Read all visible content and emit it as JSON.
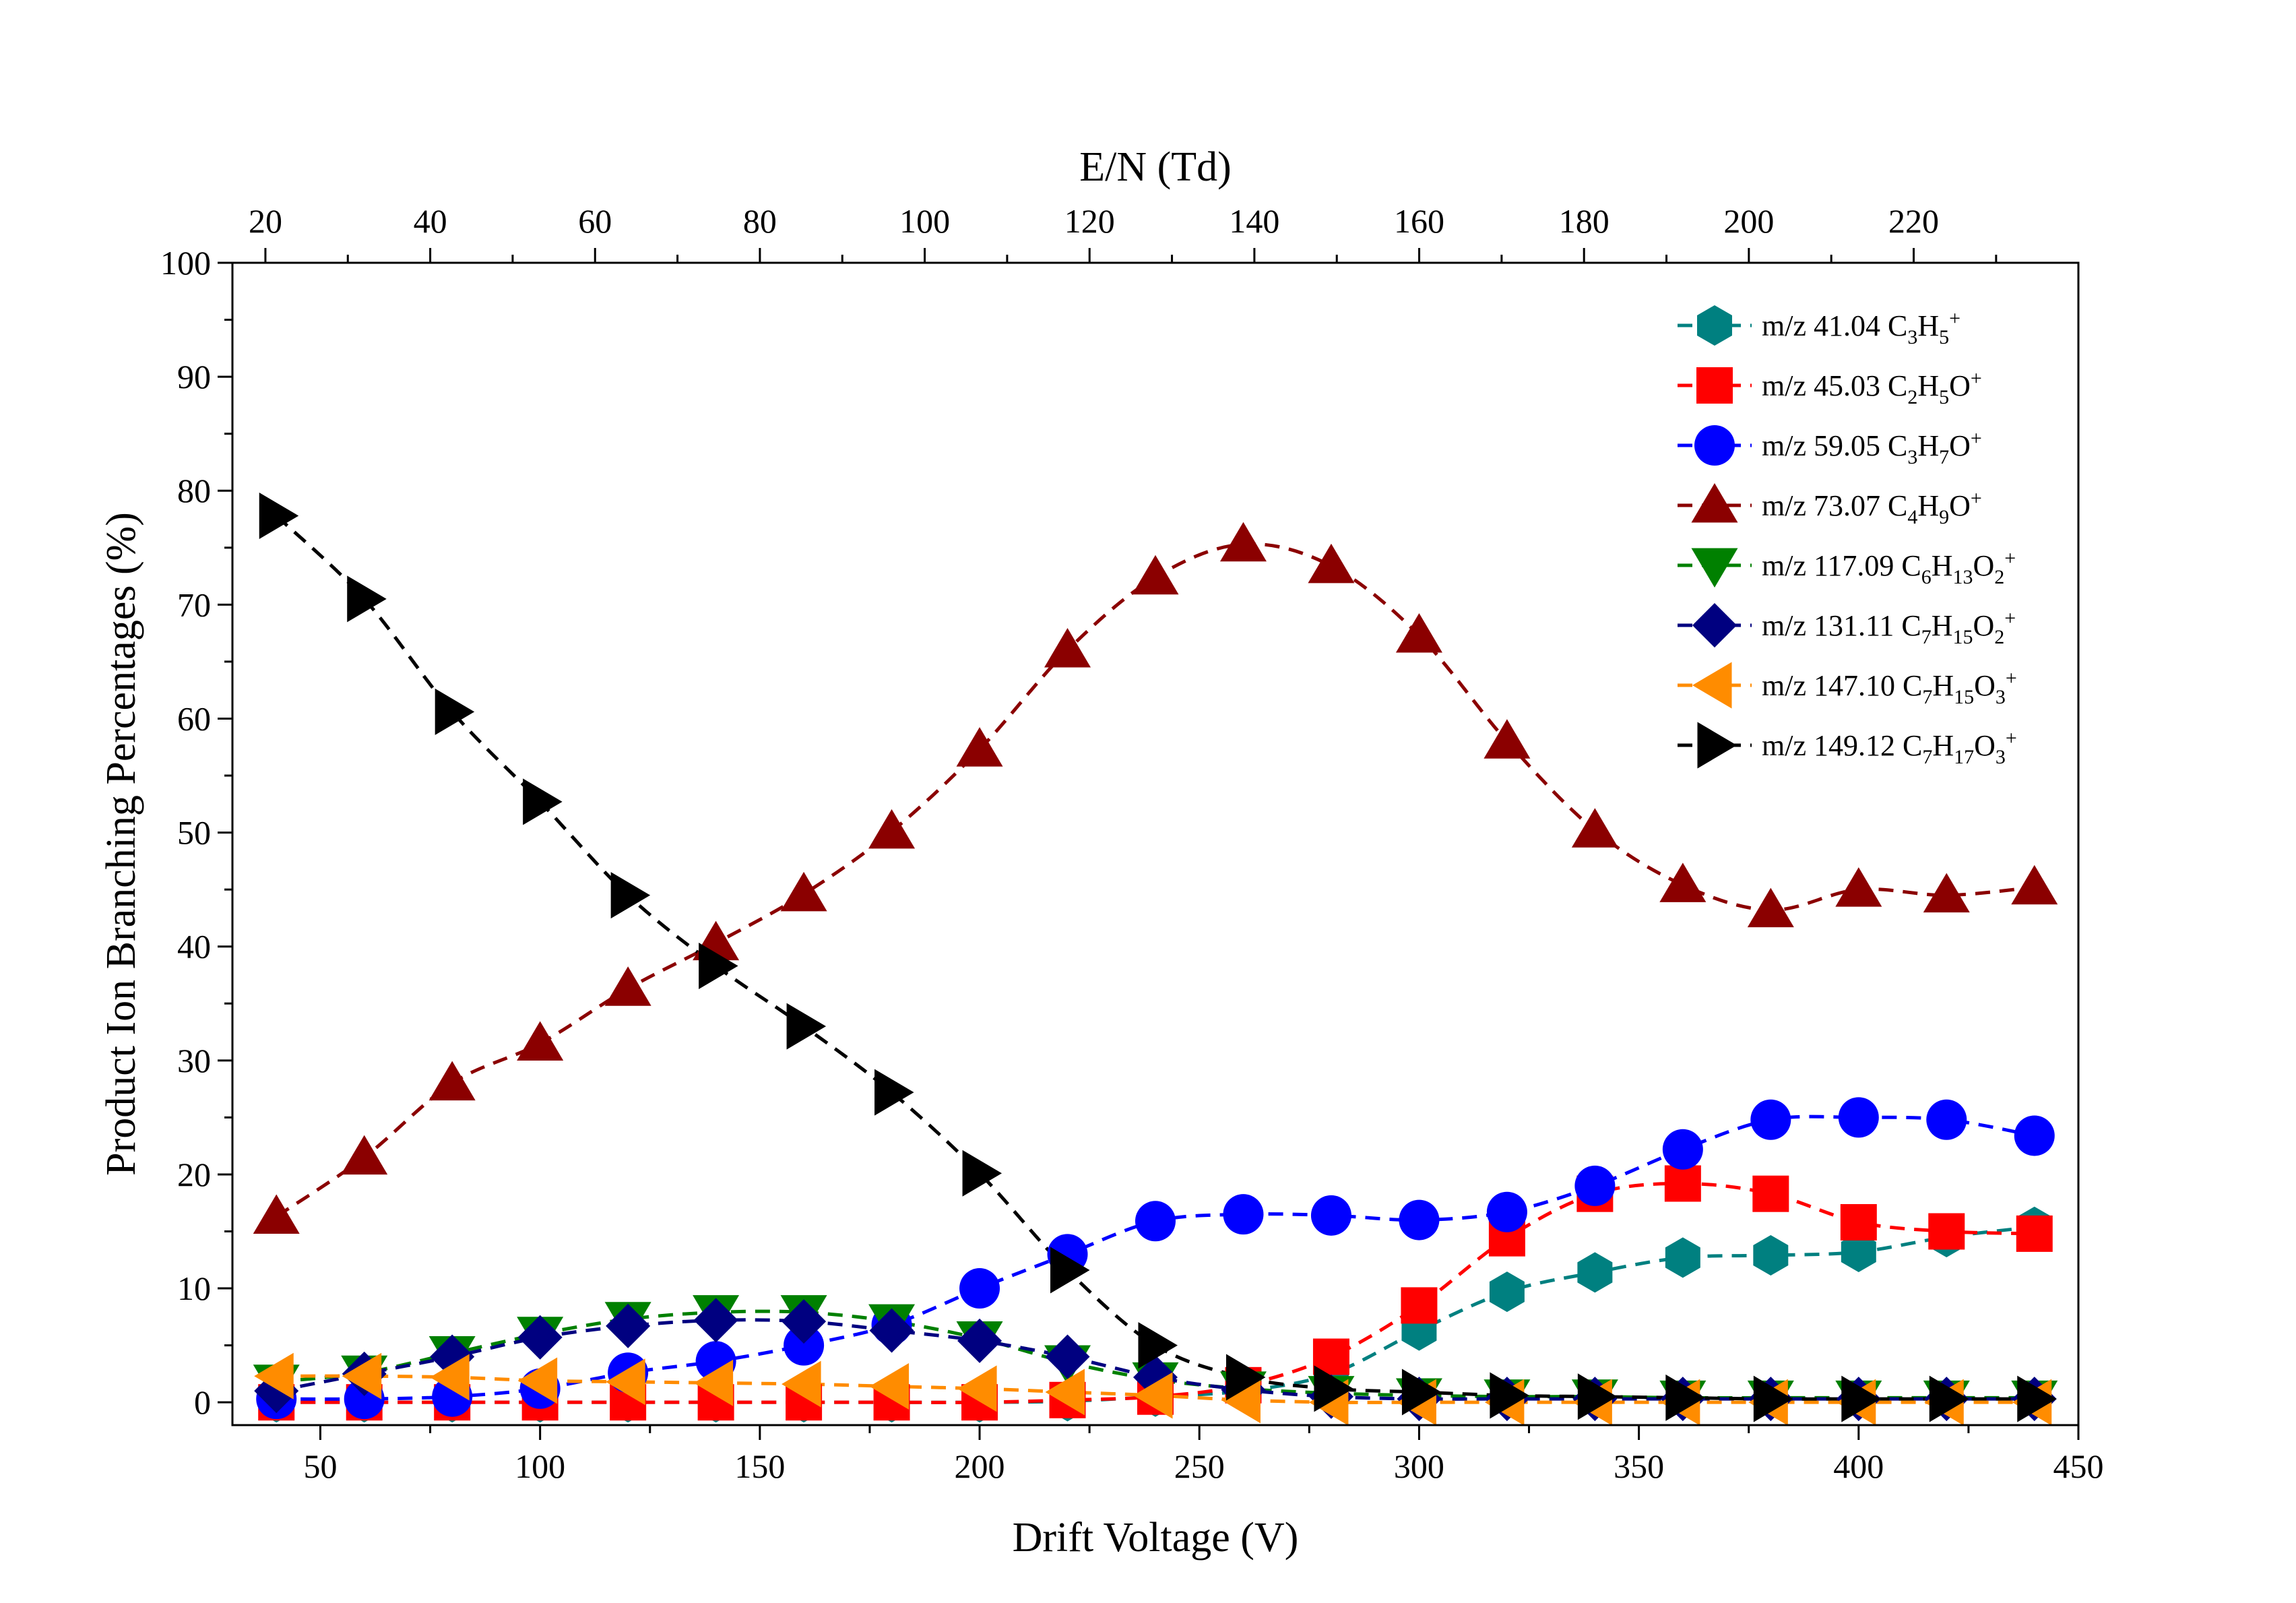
{
  "chart_data": {
    "type": "line",
    "xlabel": "Drift Voltage (V)",
    "ylabel": "Product Ion Branching Percentages (%)",
    "x2label": "E/N (Td)",
    "xlim": [
      30,
      450
    ],
    "ylim": [
      -2,
      100
    ],
    "xticks": [
      50,
      100,
      150,
      200,
      250,
      300,
      350,
      400,
      450
    ],
    "yticks": [
      0,
      10,
      20,
      30,
      40,
      50,
      60,
      70,
      80,
      90,
      100
    ],
    "x2ticks": [
      20,
      40,
      60,
      80,
      100,
      120,
      140,
      160,
      180,
      200,
      220
    ],
    "x2_per_volt": 0.5333,
    "legend_position": "top-right",
    "grid": false,
    "line_style": "dashed",
    "x": [
      40,
      60,
      80,
      100,
      120,
      140,
      160,
      180,
      200,
      220,
      240,
      260,
      280,
      300,
      320,
      340,
      360,
      380,
      400,
      420,
      440
    ],
    "series": [
      {
        "name": "m/z 41.04 C3H5+",
        "label": [
          {
            "t": "m/z 41.04 C"
          },
          {
            "t": "3",
            "s": "sub"
          },
          {
            "t": "H"
          },
          {
            "t": "5",
            "s": "sub"
          },
          {
            "t": "+",
            "s": "sup"
          }
        ],
        "color": "#008080",
        "marker": "hexagon",
        "values": [
          0,
          0,
          0,
          0,
          0,
          0,
          0,
          0,
          0,
          0.1,
          0.5,
          1.0,
          2.5,
          6.3,
          9.7,
          11.4,
          12.7,
          12.9,
          13.2,
          14.5,
          15.4
        ]
      },
      {
        "name": "m/z 45.03 C2H5O+",
        "label": [
          {
            "t": "m/z 45.03 C"
          },
          {
            "t": "2",
            "s": "sub"
          },
          {
            "t": "H"
          },
          {
            "t": "5",
            "s": "sub"
          },
          {
            "t": "O"
          },
          {
            "t": "+",
            "s": "sup"
          }
        ],
        "color": "#ff0000",
        "marker": "square",
        "values": [
          0,
          0,
          0,
          0,
          0,
          0,
          0,
          0,
          0,
          0.2,
          0.5,
          1.5,
          4.0,
          8.5,
          14.4,
          18.3,
          19.2,
          18.3,
          15.8,
          15.0,
          14.8
        ]
      },
      {
        "name": "m/z 59.05 C3H7O+",
        "label": [
          {
            "t": "m/z 59.05 C"
          },
          {
            "t": "3",
            "s": "sub"
          },
          {
            "t": "H"
          },
          {
            "t": "7",
            "s": "sub"
          },
          {
            "t": "O"
          },
          {
            "t": "+",
            "s": "sup"
          }
        ],
        "color": "#0000ff",
        "marker": "circle",
        "values": [
          0.3,
          0.3,
          0.5,
          1.2,
          2.6,
          3.6,
          5.0,
          6.8,
          10.0,
          13.0,
          15.9,
          16.5,
          16.4,
          16.0,
          16.7,
          19.0,
          22.2,
          24.8,
          25.0,
          24.8,
          23.4
        ]
      },
      {
        "name": "m/z 73.07 C4H9O+",
        "label": [
          {
            "t": "m/z 73.07 C"
          },
          {
            "t": "4",
            "s": "sub"
          },
          {
            "t": "H"
          },
          {
            "t": "9",
            "s": "sub"
          },
          {
            "t": "O"
          },
          {
            "t": "+",
            "s": "sup"
          }
        ],
        "color": "#8b0000",
        "marker": "triangle-up",
        "values": [
          16.3,
          21.5,
          28.0,
          31.5,
          36.3,
          40.3,
          44.6,
          50.1,
          57.3,
          66.0,
          72.4,
          75.3,
          73.4,
          67.3,
          58.0,
          50.2,
          45.4,
          43.2,
          45.0,
          44.5,
          45.2
        ]
      },
      {
        "name": "m/z 117.09 C6H13O2+",
        "label": [
          {
            "t": "m/z 117.09 C"
          },
          {
            "t": "6",
            "s": "sub"
          },
          {
            "t": "H"
          },
          {
            "t": "13",
            "s": "sub"
          },
          {
            "t": "O"
          },
          {
            "t": "2",
            "s": "sub"
          },
          {
            "t": "+",
            "s": "sup"
          }
        ],
        "color": "#008000",
        "marker": "triangle-down",
        "values": [
          1.8,
          2.6,
          4.3,
          6.0,
          7.3,
          7.9,
          7.9,
          7.1,
          5.6,
          3.5,
          2.0,
          1.2,
          0.8,
          0.6,
          0.5,
          0.5,
          0.4,
          0.4,
          0.4,
          0.4,
          0.4
        ]
      },
      {
        "name": "m/z 131.11 C7H15O2+",
        "label": [
          {
            "t": "m/z 131.11 C"
          },
          {
            "t": "7",
            "s": "sub"
          },
          {
            "t": "H"
          },
          {
            "t": "15",
            "s": "sub"
          },
          {
            "t": "O"
          },
          {
            "t": "2",
            "s": "sub"
          },
          {
            "t": "+",
            "s": "sup"
          }
        ],
        "color": "#000080",
        "marker": "diamond",
        "values": [
          1.0,
          2.5,
          4.0,
          5.7,
          6.7,
          7.2,
          7.1,
          6.3,
          5.4,
          4.0,
          2.2,
          1.1,
          0.5,
          0.3,
          0.3,
          0.3,
          0.3,
          0.3,
          0.3,
          0.3,
          0.3
        ]
      },
      {
        "name": "m/z 147.10 C7H15O3+",
        "label": [
          {
            "t": "m/z 147.10 C"
          },
          {
            "t": "7",
            "s": "sub"
          },
          {
            "t": "H"
          },
          {
            "t": "15",
            "s": "sub"
          },
          {
            "t": "O"
          },
          {
            "t": "3",
            "s": "sub"
          },
          {
            "t": "+",
            "s": "sup"
          }
        ],
        "color": "#ff8c00",
        "marker": "triangle-left",
        "values": [
          2.3,
          2.3,
          2.2,
          1.9,
          1.8,
          1.7,
          1.6,
          1.4,
          1.2,
          0.9,
          0.6,
          0.2,
          0.0,
          0.0,
          0.0,
          0.0,
          0.0,
          0.0,
          0.0,
          0.0,
          0.0
        ]
      },
      {
        "name": "m/z 149.12 C7H17O3+",
        "label": [
          {
            "t": "m/z 149.12 C"
          },
          {
            "t": "7",
            "s": "sub"
          },
          {
            "t": "H"
          },
          {
            "t": "17",
            "s": "sub"
          },
          {
            "t": "O"
          },
          {
            "t": "3",
            "s": "sub"
          },
          {
            "t": "+",
            "s": "sup"
          }
        ],
        "color": "#000000",
        "marker": "triangle-right",
        "values": [
          77.8,
          70.5,
          60.6,
          52.7,
          44.5,
          38.3,
          33.0,
          27.2,
          20.1,
          11.6,
          5.0,
          2.2,
          1.2,
          0.9,
          0.6,
          0.5,
          0.4,
          0.3,
          0.3,
          0.3,
          0.3
        ]
      }
    ]
  }
}
